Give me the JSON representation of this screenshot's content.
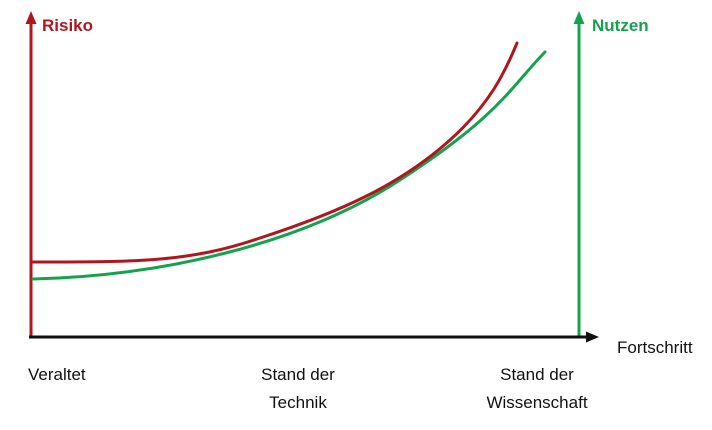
{
  "axes": {
    "left_label": "Risiko",
    "right_label": "Nutzen",
    "x_label": "Fortschritt"
  },
  "categories": [
    {
      "lines": [
        "Veraltet"
      ]
    },
    {
      "lines": [
        "Stand der",
        "Technik"
      ]
    },
    {
      "lines": [
        "Stand der",
        "Wissenschaft"
      ]
    }
  ],
  "chart_data": {
    "type": "line",
    "categories": [
      "Veraltet",
      "Stand der Technik",
      "Stand der Wissenschaft"
    ],
    "series": [
      {
        "name": "Risiko",
        "color": "#b0161d",
        "shape": "flat then rising steeply, crossing Nutzen near the left and again near Stand der Wissenschaft"
      },
      {
        "name": "Nutzen",
        "color": "#14a24e",
        "shape": "low start, steadily rising curve"
      }
    ],
    "xlabel": "Fortschritt",
    "ylabel_left": "Risiko",
    "ylabel_right": "Nutzen",
    "grid": false
  },
  "colors": {
    "risk": "#b0161d",
    "benefit": "#14a24e",
    "axis": "#111111"
  }
}
